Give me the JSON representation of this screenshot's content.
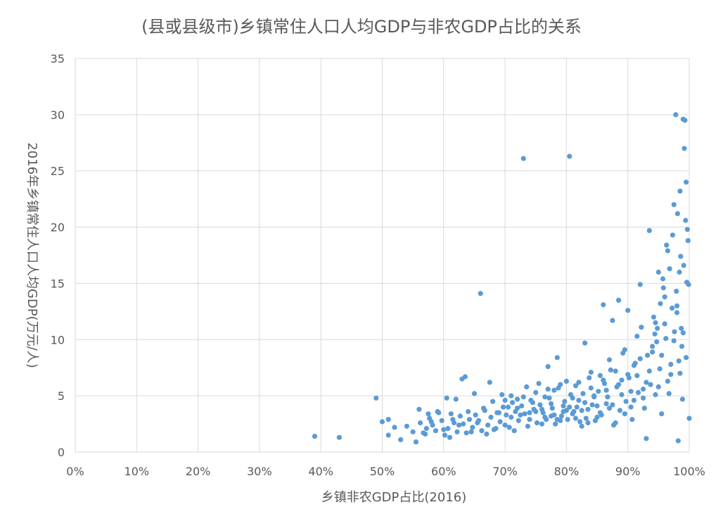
{
  "chart_data": {
    "type": "scatter",
    "title": "(县或县级市)乡镇常住人口人均GDP与非农GDP占比的关系",
    "xlabel": "乡镇非农GDP占比(2016)",
    "ylabel": "2016年乡镇常住人口人均GDP(万元/人)",
    "xlim": [
      0,
      1
    ],
    "ylim": [
      0,
      35
    ],
    "grid": true,
    "legend": "none",
    "color": "#5b9bd5",
    "x_ticks": [
      "0%",
      "10%",
      "20%",
      "30%",
      "40%",
      "50%",
      "60%",
      "70%",
      "80%",
      "90%",
      "100%"
    ],
    "x_tick_values": [
      0,
      0.1,
      0.2,
      0.3,
      0.4,
      0.5,
      0.6,
      0.7,
      0.8,
      0.9,
      1.0
    ],
    "y_ticks": [
      "0",
      "5",
      "10",
      "15",
      "20",
      "25",
      "30",
      "35"
    ],
    "y_tick_values": [
      0,
      5,
      10,
      15,
      20,
      25,
      30,
      35
    ],
    "points": [
      [
        0.39,
        1.4
      ],
      [
        0.43,
        1.3
      ],
      [
        0.49,
        4.8
      ],
      [
        0.5,
        2.7
      ],
      [
        0.51,
        1.5
      ],
      [
        0.51,
        2.9
      ],
      [
        0.52,
        2.2
      ],
      [
        0.53,
        1.1
      ],
      [
        0.54,
        2.3
      ],
      [
        0.55,
        1.8
      ],
      [
        0.555,
        0.9
      ],
      [
        0.56,
        3.8
      ],
      [
        0.57,
        1.6
      ],
      [
        0.575,
        3.4
      ],
      [
        0.58,
        2.7
      ],
      [
        0.59,
        3.6
      ],
      [
        0.6,
        2.0
      ],
      [
        0.605,
        4.8
      ],
      [
        0.61,
        1.3
      ],
      [
        0.615,
        2.9
      ],
      [
        0.62,
        4.7
      ],
      [
        0.625,
        2.4
      ],
      [
        0.63,
        6.5
      ],
      [
        0.635,
        6.7
      ],
      [
        0.64,
        3.6
      ],
      [
        0.645,
        1.8
      ],
      [
        0.65,
        5.2
      ],
      [
        0.655,
        2.6
      ],
      [
        0.66,
        14.1
      ],
      [
        0.665,
        3.9
      ],
      [
        0.67,
        1.6
      ],
      [
        0.675,
        6.2
      ],
      [
        0.68,
        4.5
      ],
      [
        0.685,
        2.1
      ],
      [
        0.69,
        3.5
      ],
      [
        0.695,
        5.1
      ],
      [
        0.7,
        2.4
      ],
      [
        0.705,
        4.0
      ],
      [
        0.71,
        3.1
      ],
      [
        0.715,
        1.9
      ],
      [
        0.72,
        4.7
      ],
      [
        0.725,
        3.3
      ],
      [
        0.73,
        26.1
      ],
      [
        0.735,
        5.8
      ],
      [
        0.74,
        2.9
      ],
      [
        0.745,
        4.4
      ],
      [
        0.75,
        3.6
      ],
      [
        0.755,
        6.1
      ],
      [
        0.76,
        2.5
      ],
      [
        0.765,
        4.9
      ],
      [
        0.77,
        7.6
      ],
      [
        0.775,
        3.2
      ],
      [
        0.78,
        5.5
      ],
      [
        0.785,
        8.4
      ],
      [
        0.79,
        2.8
      ],
      [
        0.795,
        4.1
      ],
      [
        0.8,
        6.3
      ],
      [
        0.805,
        26.3
      ],
      [
        0.81,
        3.4
      ],
      [
        0.815,
        5.9
      ],
      [
        0.82,
        4.6
      ],
      [
        0.825,
        2.3
      ],
      [
        0.83,
        9.7
      ],
      [
        0.835,
        3.8
      ],
      [
        0.84,
        7.1
      ],
      [
        0.845,
        5.0
      ],
      [
        0.85,
        3.1
      ],
      [
        0.855,
        6.8
      ],
      [
        0.86,
        13.1
      ],
      [
        0.865,
        4.3
      ],
      [
        0.87,
        8.2
      ],
      [
        0.875,
        11.7
      ],
      [
        0.88,
        2.6
      ],
      [
        0.885,
        13.5
      ],
      [
        0.89,
        6.4
      ],
      [
        0.895,
        9.1
      ],
      [
        0.9,
        12.6
      ],
      [
        0.905,
        4.0
      ],
      [
        0.91,
        7.7
      ],
      [
        0.915,
        10.3
      ],
      [
        0.92,
        14.9
      ],
      [
        0.925,
        5.6
      ],
      [
        0.93,
        1.2
      ],
      [
        0.935,
        19.7
      ],
      [
        0.94,
        8.9
      ],
      [
        0.945,
        11.5
      ],
      [
        0.95,
        16.0
      ],
      [
        0.955,
        3.4
      ],
      [
        0.96,
        13.8
      ],
      [
        0.965,
        17.9
      ],
      [
        0.97,
        6.9
      ],
      [
        0.975,
        22.0
      ],
      [
        0.978,
        30.0
      ],
      [
        0.98,
        12.4
      ],
      [
        0.982,
        1.0
      ],
      [
        0.985,
        23.2
      ],
      [
        0.988,
        9.4
      ],
      [
        0.99,
        29.6
      ],
      [
        0.992,
        27.0
      ],
      [
        0.994,
        20.6
      ],
      [
        0.996,
        15.1
      ],
      [
        0.998,
        18.8
      ],
      [
        1.0,
        3.0
      ],
      [
        0.995,
        24.0
      ],
      [
        0.993,
        29.5
      ],
      [
        0.991,
        16.6
      ],
      [
        0.989,
        4.7
      ],
      [
        0.987,
        11.0
      ],
      [
        0.983,
        8.1
      ],
      [
        0.979,
        14.3
      ],
      [
        0.973,
        19.3
      ],
      [
        0.967,
        5.2
      ],
      [
        0.962,
        10.1
      ],
      [
        0.957,
        15.4
      ],
      [
        0.952,
        7.4
      ],
      [
        0.947,
        9.8
      ],
      [
        0.942,
        12.0
      ],
      [
        0.937,
        6.0
      ],
      [
        0.932,
        8.6
      ],
      [
        0.927,
        3.9
      ],
      [
        0.922,
        11.1
      ],
      [
        0.917,
        5.3
      ],
      [
        0.912,
        7.9
      ],
      [
        0.907,
        2.9
      ],
      [
        0.902,
        6.6
      ],
      [
        0.897,
        4.5
      ],
      [
        0.892,
        8.8
      ],
      [
        0.887,
        3.7
      ],
      [
        0.882,
        5.8
      ],
      [
        0.877,
        2.4
      ],
      [
        0.872,
        7.3
      ],
      [
        0.867,
        4.9
      ],
      [
        0.862,
        6.1
      ],
      [
        0.857,
        3.3
      ],
      [
        0.852,
        5.4
      ],
      [
        0.847,
        2.8
      ],
      [
        0.842,
        4.2
      ],
      [
        0.837,
        6.6
      ],
      [
        0.832,
        3.0
      ],
      [
        0.827,
        5.2
      ],
      [
        0.822,
        2.7
      ],
      [
        0.817,
        4.0
      ],
      [
        0.812,
        3.6
      ],
      [
        0.807,
        5.1
      ],
      [
        0.802,
        2.9
      ],
      [
        0.797,
        4.5
      ],
      [
        0.792,
        3.2
      ],
      [
        0.787,
        5.7
      ],
      [
        0.782,
        2.5
      ],
      [
        0.777,
        3.9
      ],
      [
        0.772,
        4.8
      ],
      [
        0.767,
        2.9
      ],
      [
        0.762,
        3.5
      ],
      [
        0.757,
        4.2
      ],
      [
        0.752,
        2.6
      ],
      [
        0.747,
        3.8
      ],
      [
        0.742,
        4.6
      ],
      [
        0.737,
        2.3
      ],
      [
        0.732,
        3.4
      ],
      [
        0.727,
        4.1
      ],
      [
        0.722,
        2.8
      ],
      [
        0.717,
        3.6
      ],
      [
        0.712,
        4.4
      ],
      [
        0.707,
        2.2
      ],
      [
        0.702,
        3.3
      ],
      [
        0.697,
        4.0
      ],
      [
        0.692,
        2.7
      ],
      [
        0.687,
        3.5
      ],
      [
        0.682,
        2.0
      ],
      [
        0.677,
        3.1
      ],
      [
        0.672,
        2.4
      ],
      [
        0.667,
        3.7
      ],
      [
        0.662,
        1.9
      ],
      [
        0.657,
        2.8
      ],
      [
        0.652,
        3.3
      ],
      [
        0.647,
        2.2
      ],
      [
        0.642,
        2.9
      ],
      [
        0.637,
        1.7
      ],
      [
        0.632,
        2.5
      ],
      [
        0.627,
        3.2
      ],
      [
        0.622,
        1.8
      ],
      [
        0.617,
        2.6
      ],
      [
        0.612,
        3.4
      ],
      [
        0.607,
        2.1
      ],
      [
        0.602,
        1.5
      ],
      [
        0.597,
        2.8
      ],
      [
        0.592,
        3.5
      ],
      [
        0.587,
        1.9
      ],
      [
        0.582,
        2.4
      ],
      [
        0.577,
        3.0
      ],
      [
        0.572,
        2.1
      ],
      [
        0.567,
        1.7
      ],
      [
        0.562,
        2.6
      ],
      [
        0.7,
        4.6
      ],
      [
        0.71,
        5.0
      ],
      [
        0.72,
        3.9
      ],
      [
        0.73,
        4.9
      ],
      [
        0.74,
        3.5
      ],
      [
        0.75,
        5.3
      ],
      [
        0.76,
        3.8
      ],
      [
        0.77,
        5.6
      ],
      [
        0.78,
        3.3
      ],
      [
        0.79,
        6.0
      ],
      [
        0.8,
        3.7
      ],
      [
        0.81,
        4.8
      ],
      [
        0.82,
        6.2
      ],
      [
        0.83,
        4.4
      ],
      [
        0.84,
        5.7
      ],
      [
        0.85,
        4.1
      ],
      [
        0.86,
        6.4
      ],
      [
        0.87,
        3.9
      ],
      [
        0.88,
        7.2
      ],
      [
        0.89,
        5.1
      ],
      [
        0.9,
        6.9
      ],
      [
        0.91,
        4.6
      ],
      [
        0.92,
        8.3
      ],
      [
        0.93,
        6.2
      ],
      [
        0.94,
        9.4
      ],
      [
        0.95,
        5.8
      ],
      [
        0.96,
        11.4
      ],
      [
        0.97,
        7.8
      ],
      [
        0.98,
        13.0
      ],
      [
        0.99,
        10.6
      ],
      [
        0.765,
        3.1
      ],
      [
        0.775,
        4.3
      ],
      [
        0.785,
        2.9
      ],
      [
        0.795,
        3.6
      ],
      [
        0.805,
        4.0
      ],
      [
        0.815,
        3.0
      ],
      [
        0.825,
        3.7
      ],
      [
        0.835,
        2.6
      ],
      [
        0.845,
        4.9
      ],
      [
        0.855,
        3.5
      ],
      [
        0.865,
        5.5
      ],
      [
        0.875,
        4.2
      ],
      [
        0.885,
        6.0
      ],
      [
        0.895,
        3.4
      ],
      [
        0.905,
        5.4
      ],
      [
        0.915,
        6.8
      ],
      [
        0.925,
        4.8
      ],
      [
        0.935,
        7.2
      ],
      [
        0.945,
        5.1
      ],
      [
        0.955,
        8.6
      ],
      [
        0.965,
        6.3
      ],
      [
        0.975,
        9.9
      ],
      [
        0.985,
        7.0
      ],
      [
        0.995,
        8.4
      ],
      [
        0.968,
        16.3
      ],
      [
        0.972,
        12.8
      ],
      [
        0.958,
        14.6
      ],
      [
        0.948,
        11.0
      ],
      [
        0.963,
        18.4
      ],
      [
        0.981,
        21.2
      ],
      [
        0.986,
        17.4
      ],
      [
        0.997,
        19.8
      ],
      [
        0.999,
        14.9
      ],
      [
        0.984,
        16.0
      ],
      [
        0.976,
        10.7
      ],
      [
        0.953,
        13.2
      ],
      [
        0.944,
        10.5
      ]
    ]
  }
}
